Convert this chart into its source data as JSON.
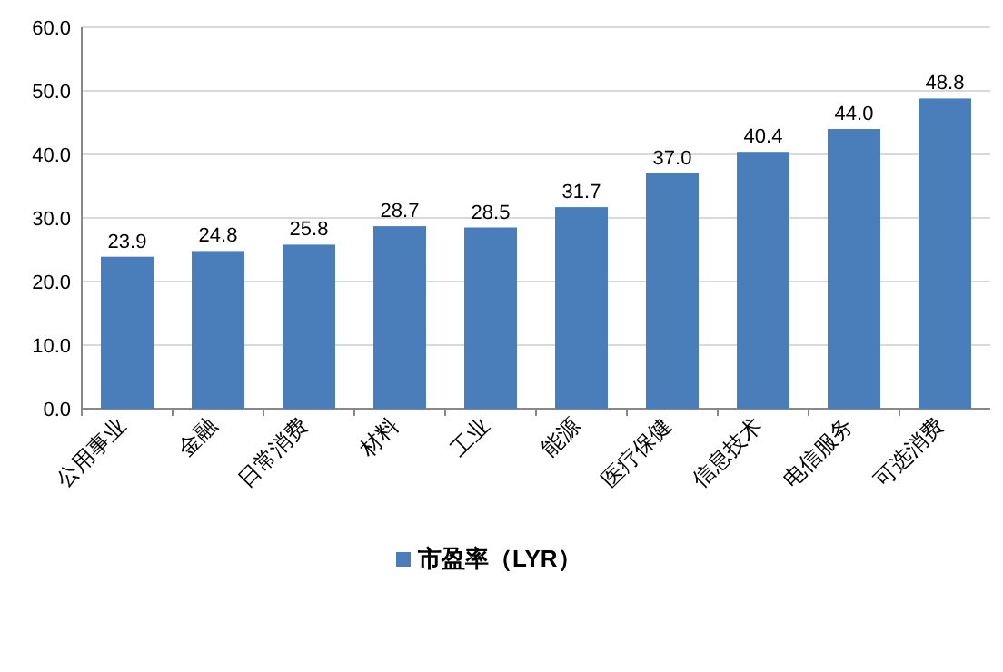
{
  "chart_data": {
    "type": "bar",
    "categories": [
      "公用事业",
      "金融",
      "日常消费",
      "材料",
      "工业",
      "能源",
      "医疗保健",
      "信息技术",
      "电信服务",
      "可选消费"
    ],
    "series": [
      {
        "name": "市盈率（LYR）",
        "color": "#4a7ebb",
        "values": [
          23.9,
          24.8,
          25.8,
          28.7,
          28.5,
          31.7,
          37.0,
          40.4,
          44.0,
          48.8
        ],
        "value_labels": [
          "23.9",
          "24.8",
          "25.8",
          "28.7",
          "28.5",
          "31.7",
          "37.0",
          "40.4",
          "44.0",
          "48.8"
        ]
      }
    ],
    "ylim": [
      0,
      60
    ],
    "yticks": [
      {
        "value": 0,
        "label": "0.0"
      },
      {
        "value": 10,
        "label": "10.0"
      },
      {
        "value": 20,
        "label": "20.0"
      },
      {
        "value": 30,
        "label": "30.0"
      },
      {
        "value": 40,
        "label": "40.0"
      },
      {
        "value": 50,
        "label": "50.0"
      },
      {
        "value": 60,
        "label": "60.0"
      }
    ],
    "grid": "y",
    "legend": "bottom"
  }
}
